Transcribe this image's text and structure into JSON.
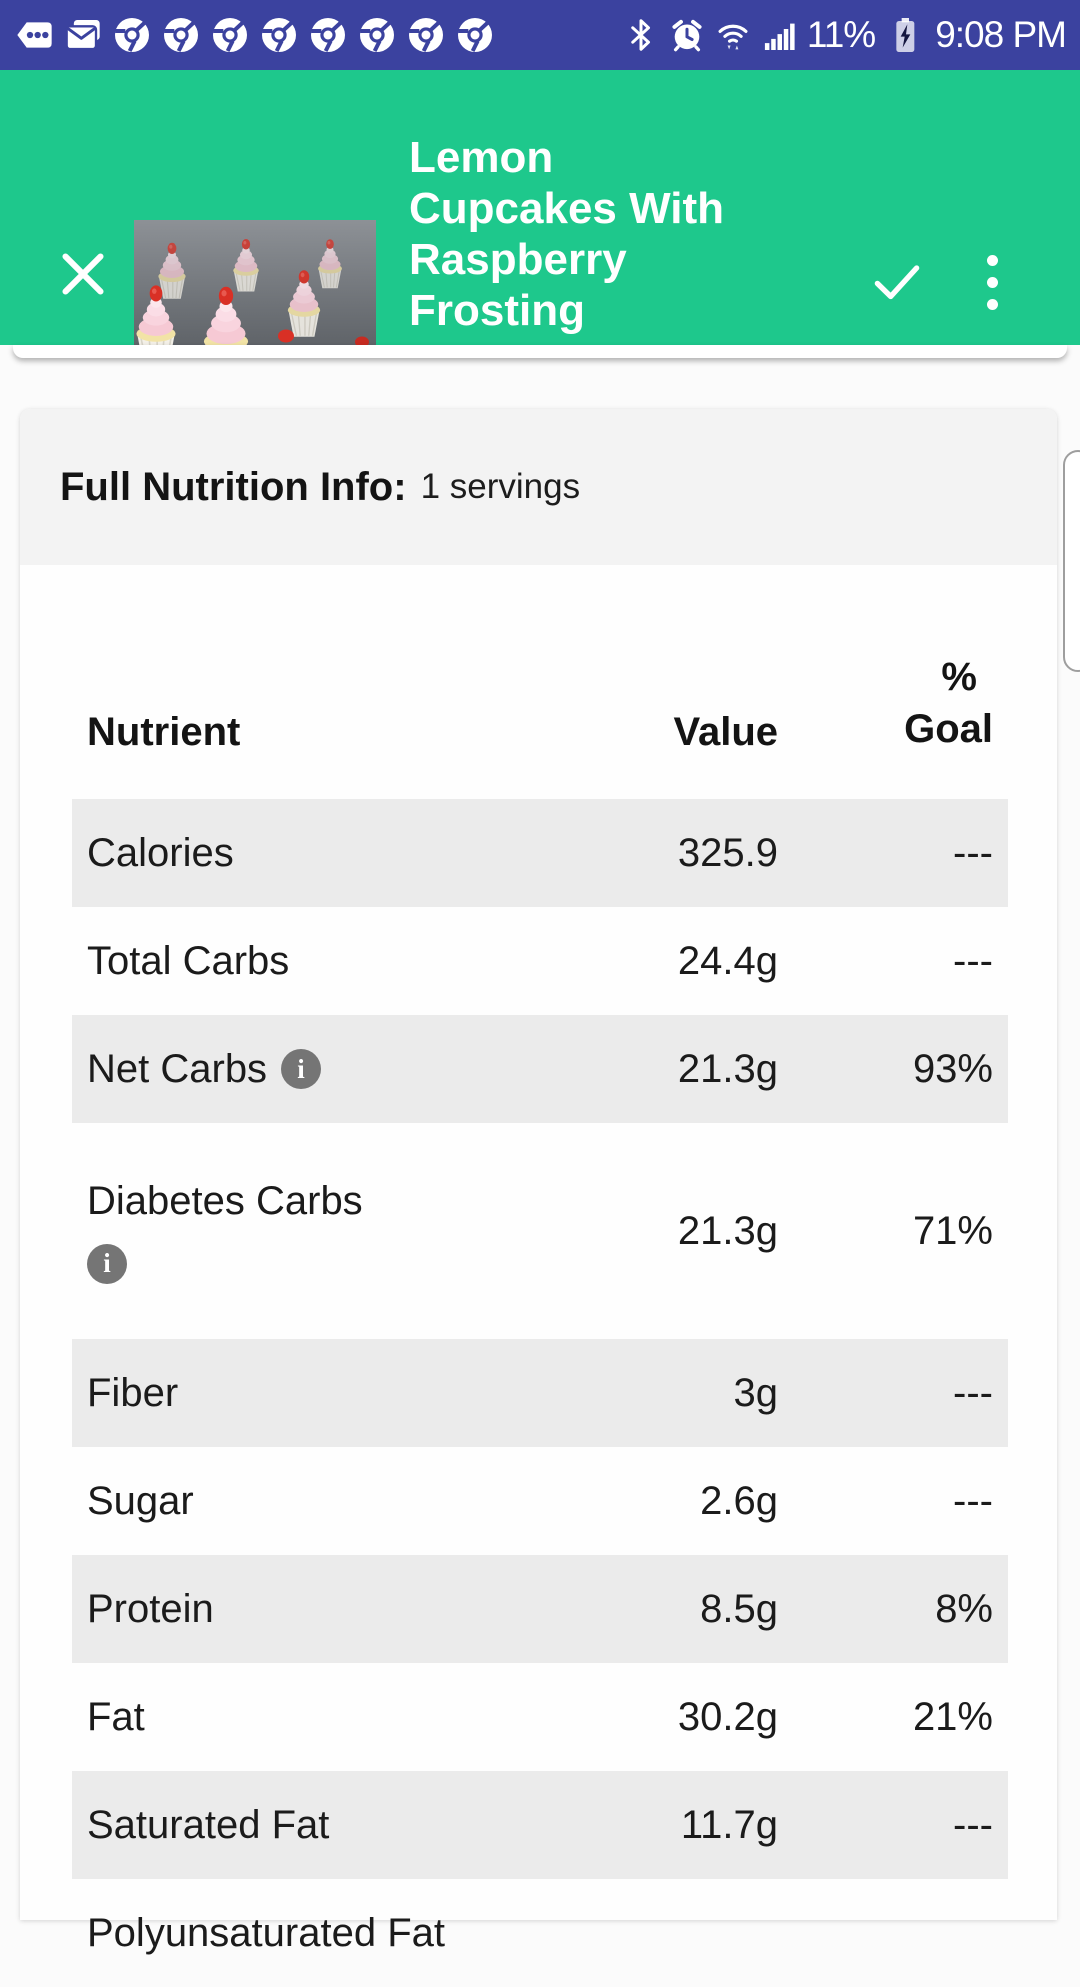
{
  "colors": {
    "status_bar_bg": "#3B429F",
    "app_bar_bg": "#1EC88C",
    "row_stripe": "#EBEBEB",
    "card_header_bg": "#F3F3F3",
    "info_icon_bg": "#757575"
  },
  "status_bar": {
    "left_icons": [
      "more-notifications",
      "email",
      "chrome",
      "chrome",
      "chrome",
      "chrome",
      "chrome",
      "chrome",
      "chrome",
      "chrome"
    ],
    "right_icons": [
      "bluetooth",
      "alarm",
      "wifi",
      "signal"
    ],
    "battery_percent": "11%",
    "time": "9:08 PM"
  },
  "app_bar": {
    "title_lines": [
      "Lemon",
      "Cupcakes With",
      "Raspberry",
      "Frosting"
    ],
    "close_label": "close",
    "confirm_label": "confirm",
    "menu_label": "more options",
    "thumbnail_alt": "lemon cupcakes with raspberry frosting photo"
  },
  "nutrition": {
    "section_title": "Full Nutrition Info:",
    "servings": "1 servings",
    "columns": {
      "nutrient": "Nutrient",
      "value": "Value",
      "goal_line1": "%",
      "goal_line2": "Goal"
    },
    "rows": [
      {
        "nutrient": "Calories",
        "value": "325.9",
        "goal": "---",
        "info": false,
        "info_below": false,
        "shaded": true,
        "partial": false
      },
      {
        "nutrient": "Total Carbs",
        "value": "24.4g",
        "goal": "---",
        "info": false,
        "info_below": false,
        "shaded": false,
        "partial": false
      },
      {
        "nutrient": "Net Carbs",
        "value": "21.3g",
        "goal": "93%",
        "info": true,
        "info_below": false,
        "shaded": true,
        "partial": false
      },
      {
        "nutrient": "Diabetes Carbs",
        "value": "21.3g",
        "goal": "71%",
        "info": true,
        "info_below": true,
        "shaded": false,
        "partial": false
      },
      {
        "nutrient": "Fiber",
        "value": "3g",
        "goal": "---",
        "info": false,
        "info_below": false,
        "shaded": true,
        "partial": false
      },
      {
        "nutrient": "Sugar",
        "value": "2.6g",
        "goal": "---",
        "info": false,
        "info_below": false,
        "shaded": false,
        "partial": false
      },
      {
        "nutrient": "Protein",
        "value": "8.5g",
        "goal": "8%",
        "info": false,
        "info_below": false,
        "shaded": true,
        "partial": false
      },
      {
        "nutrient": "Fat",
        "value": "30.2g",
        "goal": "21%",
        "info": false,
        "info_below": false,
        "shaded": false,
        "partial": false
      },
      {
        "nutrient": "Saturated Fat",
        "value": "11.7g",
        "goal": "---",
        "info": false,
        "info_below": false,
        "shaded": true,
        "partial": false
      },
      {
        "nutrient": "Polyunsaturated Fat",
        "value": "",
        "goal": "",
        "info": false,
        "info_below": false,
        "shaded": false,
        "partial": true
      }
    ],
    "info_icon_glyph": "i"
  }
}
